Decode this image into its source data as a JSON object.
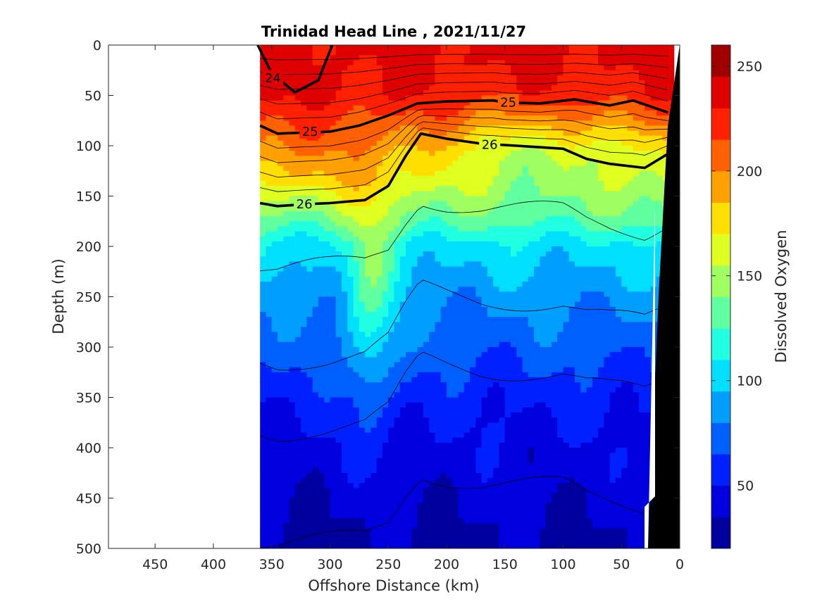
{
  "chart_data": {
    "type": "heatmap",
    "title": "Trinidad Head Line , 2021/11/27",
    "xlabel": "Offshore Distance (km)",
    "ylabel": "Depth (m)",
    "xlim": [
      490,
      0
    ],
    "ylim": [
      500,
      0
    ],
    "x_reversed": true,
    "y_reversed": true,
    "x_ticks": [
      450,
      400,
      350,
      300,
      250,
      200,
      150,
      100,
      50,
      0
    ],
    "y_ticks": [
      0,
      50,
      100,
      150,
      200,
      250,
      300,
      350,
      400,
      450,
      500
    ],
    "colorbar": {
      "label": "Dissolved Oxygen",
      "min": 20,
      "max": 260,
      "ticks": [
        50,
        100,
        150,
        200,
        250
      ],
      "colormap": "jet"
    },
    "data_extent_km": [
      360,
      5
    ],
    "oxygen_profile": {
      "depth": [
        0,
        50,
        80,
        100,
        130,
        160,
        200,
        250,
        300,
        350,
        400,
        450,
        500
      ],
      "value": [
        235,
        230,
        215,
        205,
        185,
        150,
        105,
        85,
        70,
        55,
        45,
        38,
        32
      ]
    },
    "isopycnals_bold": [
      {
        "label": "24",
        "x": [
          362,
          350,
          330,
          310,
          298
        ],
        "y": [
          0,
          28,
          47,
          35,
          0
        ]
      },
      {
        "label": "25",
        "x": [
          360,
          345,
          325,
          300,
          275,
          250,
          225,
          200,
          160,
          150,
          120,
          90,
          60,
          40,
          10
        ],
        "y": [
          80,
          88,
          87,
          86,
          80,
          70,
          58,
          56,
          55,
          57,
          58,
          54,
          60,
          55,
          67
        ]
      },
      {
        "label": "26",
        "x": [
          360,
          345,
          320,
          300,
          270,
          250,
          235,
          222,
          200,
          170,
          140,
          100,
          80,
          60,
          30,
          10
        ],
        "y": [
          157,
          160,
          158,
          157,
          154,
          140,
          110,
          88,
          93,
          98,
          100,
          103,
          113,
          118,
          122,
          108
        ]
      }
    ],
    "contour_labels": [
      {
        "text": "24",
        "x": 349,
        "y": 33
      },
      {
        "text": "25",
        "x": 317,
        "y": 86
      },
      {
        "text": "25",
        "x": 147,
        "y": 57
      },
      {
        "text": "26",
        "x": 322,
        "y": 158
      },
      {
        "text": "26",
        "x": 163,
        "y": 99
      }
    ]
  }
}
